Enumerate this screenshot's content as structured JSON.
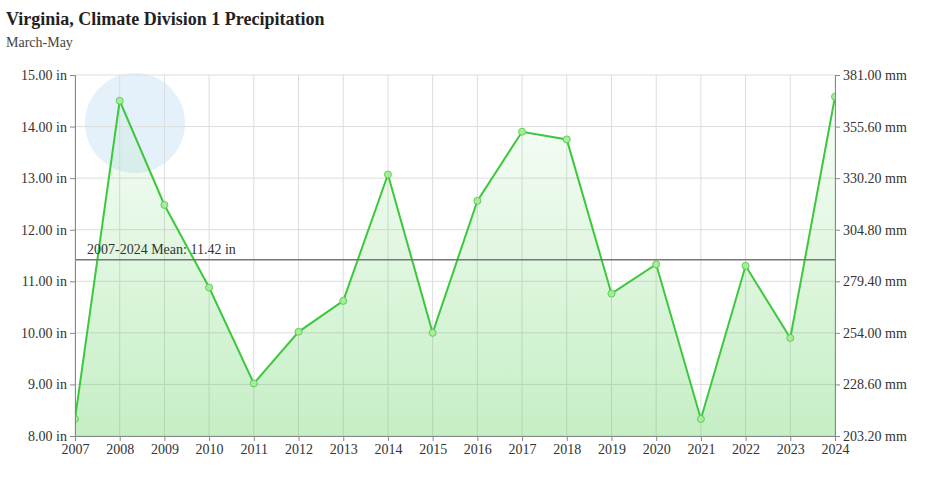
{
  "chart_data": {
    "type": "line",
    "title": "Virginia, Climate Division 1 Precipitation",
    "subtitle": "March-May",
    "x": [
      2007,
      2008,
      2009,
      2010,
      2011,
      2012,
      2013,
      2014,
      2015,
      2016,
      2017,
      2018,
      2019,
      2020,
      2021,
      2022,
      2023,
      2024
    ],
    "values": [
      8.33,
      14.5,
      12.48,
      10.88,
      9.02,
      10.02,
      10.62,
      13.07,
      10.0,
      12.56,
      13.9,
      13.75,
      10.76,
      11.33,
      8.33,
      11.3,
      9.9,
      14.58
    ],
    "color": "#3cc83c",
    "marker": "circle",
    "grid": true,
    "xlim": [
      2007,
      2024
    ],
    "xticks": [
      2007,
      2008,
      2009,
      2010,
      2011,
      2012,
      2013,
      2014,
      2015,
      2016,
      2017,
      2018,
      2019,
      2020,
      2021,
      2022,
      2023,
      2024
    ],
    "ylim": [
      8,
      15
    ],
    "yticks": [
      {
        "value": 8,
        "label": "8.00 in"
      },
      {
        "value": 9,
        "label": "9.00 in"
      },
      {
        "value": 10,
        "label": "10.00 in"
      },
      {
        "value": 11,
        "label": "11.00 in"
      },
      {
        "value": 12,
        "label": "12.00 in"
      },
      {
        "value": 13,
        "label": "13.00 in"
      },
      {
        "value": 14,
        "label": "14.00 in"
      },
      {
        "value": 15,
        "label": "15.00 in"
      }
    ],
    "y2lim": [
      203.2,
      381.0
    ],
    "y2ticks": [
      {
        "value": 203.2,
        "label": "203.20 mm"
      },
      {
        "value": 228.6,
        "label": "228.60 mm"
      },
      {
        "value": 254.0,
        "label": "254.00 mm"
      },
      {
        "value": 279.4,
        "label": "279.40 mm"
      },
      {
        "value": 304.8,
        "label": "304.80 mm"
      },
      {
        "value": 330.2,
        "label": "330.20 mm"
      },
      {
        "value": 355.6,
        "label": "355.60 mm"
      },
      {
        "value": 381.0,
        "label": "381.00 mm"
      }
    ],
    "annotations": [
      {
        "value": 11.42,
        "label": "2007-2024 Mean: 11.42 in"
      }
    ]
  }
}
